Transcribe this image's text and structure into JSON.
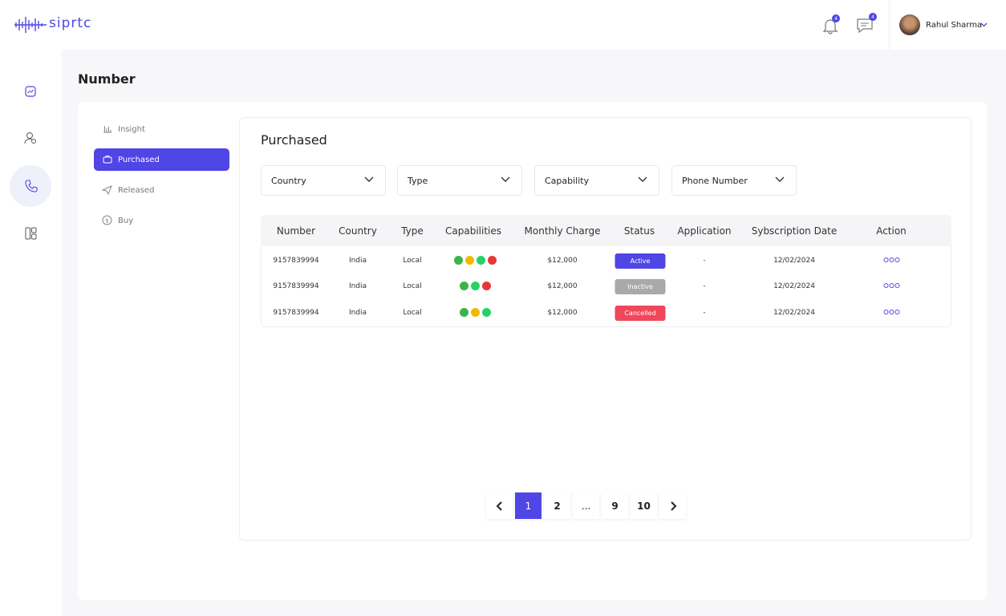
{
  "header": {
    "logo": "siprtc",
    "notifications_badge": "4",
    "messages_badge": "4",
    "user_name": "Rahul Sharma"
  },
  "page_title": "Number",
  "menu": [
    "Insight",
    "Purchased",
    "Released",
    "Buy"
  ],
  "section_title": "Purchased",
  "filters": [
    "Country",
    "Type",
    "Capability",
    "Phone Number"
  ],
  "table": {
    "columns": [
      "Number",
      "Country",
      "Type",
      "Capabilities",
      "Monthly Charge",
      "Status",
      "Application",
      "Sybscription Date",
      "Action"
    ],
    "rows": [
      [
        "9157839994",
        "India",
        "Local",
        "$12,000",
        "Active",
        "-",
        "12/02/2024"
      ],
      [
        "9157839994",
        "India",
        "Local",
        "$12,000",
        "Inactive",
        "-",
        "12/02/2024"
      ],
      [
        "9157839994",
        "India",
        "Local",
        "$12,000",
        "Cancelled",
        "-",
        "12/02/2024"
      ]
    ]
  },
  "pagination": [
    "1",
    "2",
    "...",
    "9",
    "10"
  ]
}
